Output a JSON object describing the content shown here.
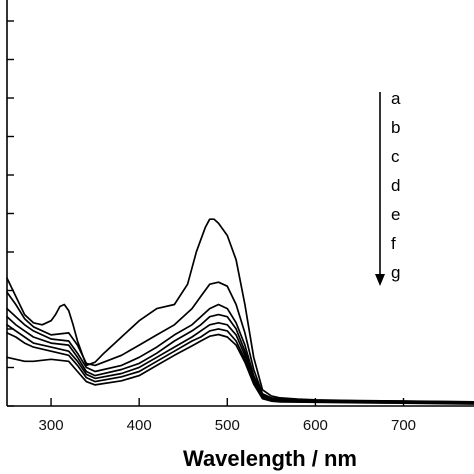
{
  "chart_data": {
    "type": "line",
    "xlabel": "Wavelength / nm",
    "ylabel": "",
    "xlim": [
      250,
      780
    ],
    "ylim": [
      0,
      1.0
    ],
    "x_ticks": [
      300,
      400,
      500,
      600,
      700
    ],
    "legend": {
      "entries": [
        "a",
        "b",
        "c",
        "d",
        "e",
        "f",
        "g"
      ],
      "placement": "top-right",
      "arrow_direction": "down"
    },
    "grid": false,
    "series": [
      {
        "x": [
          250,
          260,
          270,
          280,
          290,
          300,
          305,
          310,
          315,
          320,
          325,
          330,
          340,
          350,
          360,
          380,
          400,
          420,
          440,
          455,
          465,
          475,
          480,
          485,
          490,
          500,
          510,
          520,
          530,
          540,
          550,
          560,
          580,
          600,
          650,
          700,
          750,
          780
        ],
        "values": [
          0.315,
          0.27,
          0.225,
          0.205,
          0.2,
          0.21,
          0.225,
          0.245,
          0.25,
          0.235,
          0.2,
          0.16,
          0.1,
          0.108,
          0.13,
          0.17,
          0.21,
          0.24,
          0.25,
          0.3,
          0.38,
          0.44,
          0.46,
          0.46,
          0.45,
          0.42,
          0.36,
          0.25,
          0.12,
          0.04,
          0.025,
          0.02,
          0.017,
          0.015,
          0.013,
          0.012,
          0.011,
          0.01
        ]
      },
      {
        "x": [
          250,
          260,
          270,
          280,
          300,
          320,
          330,
          340,
          350,
          380,
          400,
          420,
          440,
          460,
          470,
          480,
          490,
          500,
          510,
          520,
          530,
          540,
          550,
          560,
          600,
          700,
          780
        ],
        "values": [
          0.28,
          0.25,
          0.215,
          0.195,
          0.175,
          0.18,
          0.15,
          0.105,
          0.1,
          0.125,
          0.15,
          0.175,
          0.2,
          0.24,
          0.27,
          0.3,
          0.305,
          0.295,
          0.25,
          0.18,
          0.09,
          0.03,
          0.02,
          0.017,
          0.014,
          0.012,
          0.009
        ]
      },
      {
        "x": [
          250,
          260,
          270,
          280,
          300,
          320,
          330,
          340,
          350,
          380,
          400,
          420,
          440,
          460,
          470,
          480,
          490,
          500,
          510,
          520,
          530,
          540,
          550,
          560,
          600,
          700,
          780
        ],
        "values": [
          0.24,
          0.22,
          0.2,
          0.185,
          0.165,
          0.16,
          0.13,
          0.095,
          0.085,
          0.1,
          0.12,
          0.145,
          0.175,
          0.2,
          0.22,
          0.24,
          0.25,
          0.24,
          0.205,
          0.15,
          0.075,
          0.028,
          0.018,
          0.015,
          0.013,
          0.011,
          0.009
        ]
      },
      {
        "x": [
          250,
          260,
          270,
          280,
          300,
          320,
          330,
          340,
          350,
          380,
          400,
          420,
          440,
          460,
          470,
          480,
          490,
          500,
          510,
          520,
          530,
          540,
          550,
          560,
          600,
          700,
          780
        ],
        "values": [
          0.22,
          0.2,
          0.185,
          0.17,
          0.155,
          0.15,
          0.12,
          0.085,
          0.075,
          0.09,
          0.105,
          0.13,
          0.16,
          0.185,
          0.2,
          0.22,
          0.225,
          0.22,
          0.19,
          0.135,
          0.068,
          0.025,
          0.016,
          0.014,
          0.012,
          0.01,
          0.008
        ]
      },
      {
        "x": [
          250,
          260,
          270,
          280,
          300,
          320,
          330,
          340,
          350,
          380,
          400,
          420,
          440,
          460,
          470,
          480,
          490,
          500,
          510,
          520,
          530,
          540,
          550,
          560,
          600,
          700,
          780
        ],
        "values": [
          0.2,
          0.185,
          0.17,
          0.155,
          0.145,
          0.135,
          0.11,
          0.078,
          0.068,
          0.08,
          0.095,
          0.12,
          0.145,
          0.17,
          0.185,
          0.2,
          0.205,
          0.2,
          0.175,
          0.125,
          0.062,
          0.022,
          0.014,
          0.012,
          0.011,
          0.009,
          0.007
        ]
      },
      {
        "x": [
          250,
          260,
          270,
          280,
          300,
          320,
          330,
          340,
          350,
          380,
          400,
          420,
          440,
          460,
          470,
          480,
          490,
          500,
          510,
          520,
          530,
          540,
          550,
          560,
          600,
          700,
          780
        ],
        "values": [
          0.18,
          0.17,
          0.155,
          0.145,
          0.135,
          0.125,
          0.1,
          0.07,
          0.06,
          0.072,
          0.085,
          0.11,
          0.135,
          0.16,
          0.17,
          0.185,
          0.19,
          0.185,
          0.16,
          0.115,
          0.058,
          0.02,
          0.013,
          0.011,
          0.01,
          0.008,
          0.006
        ]
      },
      {
        "x": [
          250,
          260,
          270,
          280,
          300,
          320,
          330,
          340,
          350,
          380,
          400,
          420,
          440,
          460,
          470,
          480,
          490,
          500,
          510,
          520,
          530,
          540,
          550,
          560,
          600,
          700,
          780
        ],
        "values": [
          0.12,
          0.115,
          0.11,
          0.11,
          0.115,
          0.11,
          0.085,
          0.06,
          0.052,
          0.062,
          0.075,
          0.1,
          0.125,
          0.148,
          0.16,
          0.172,
          0.176,
          0.17,
          0.15,
          0.108,
          0.054,
          0.018,
          0.012,
          0.01,
          0.009,
          0.007,
          0.005
        ]
      }
    ]
  }
}
